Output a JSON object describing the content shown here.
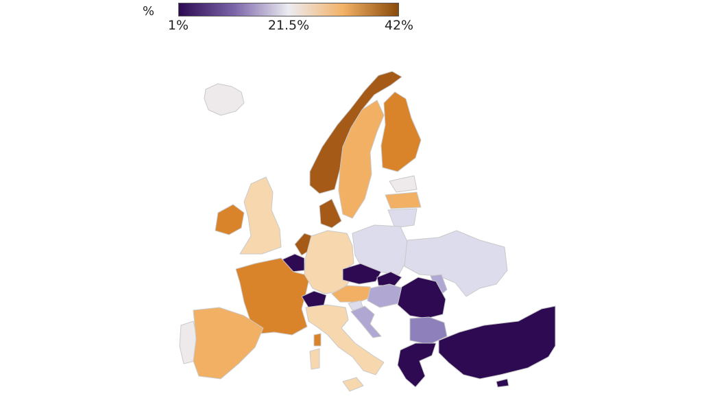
{
  "legend": {
    "unit": "%",
    "ticks": [
      "1%",
      "21.5%",
      "42%"
    ],
    "range": [
      1,
      42
    ],
    "colors": [
      "#2d0a52",
      "#7a64a8",
      "#ececf2",
      "#f2b166",
      "#8a4a0a"
    ]
  },
  "colors": {
    "dark_orange": "#a55a17",
    "orange": "#d9832a",
    "light_orange": "#f2b064",
    "peach": "#f7d7ae",
    "pale": "#eeeaec",
    "lavender": "#dcdcec",
    "light_purple": "#b0a8d2",
    "mid_purple": "#8d80bb",
    "deep_purple": "#2d0a52"
  }
}
